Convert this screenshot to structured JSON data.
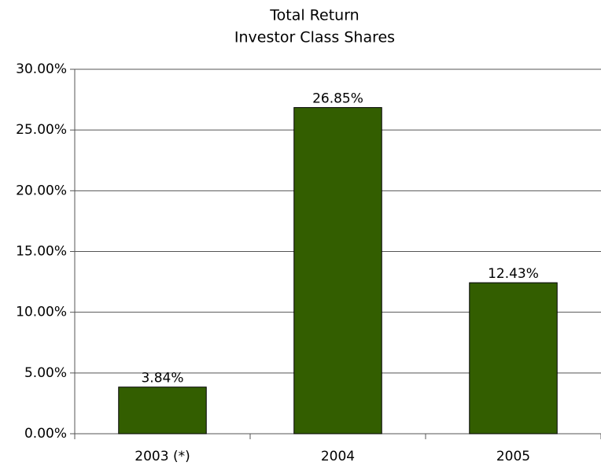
{
  "chart_data": {
    "type": "bar",
    "title": "Total Return",
    "subtitle": "Investor Class Shares",
    "categories": [
      "2003 (*)",
      "2004",
      "2005"
    ],
    "values": [
      3.84,
      26.85,
      12.43
    ],
    "value_labels": [
      "3.84%",
      "26.85%",
      "12.43%"
    ],
    "color": "#335e00",
    "ylim": [
      0,
      30
    ],
    "yticks": [
      {
        "value": 0,
        "label": "0.00%"
      },
      {
        "value": 5,
        "label": "5.00%"
      },
      {
        "value": 10,
        "label": "10.00%"
      },
      {
        "value": 15,
        "label": "15.00%"
      },
      {
        "value": 20,
        "label": "20.00%"
      },
      {
        "value": 25,
        "label": "25.00%"
      },
      {
        "value": 30,
        "label": "30.00%"
      }
    ],
    "grid": true
  }
}
